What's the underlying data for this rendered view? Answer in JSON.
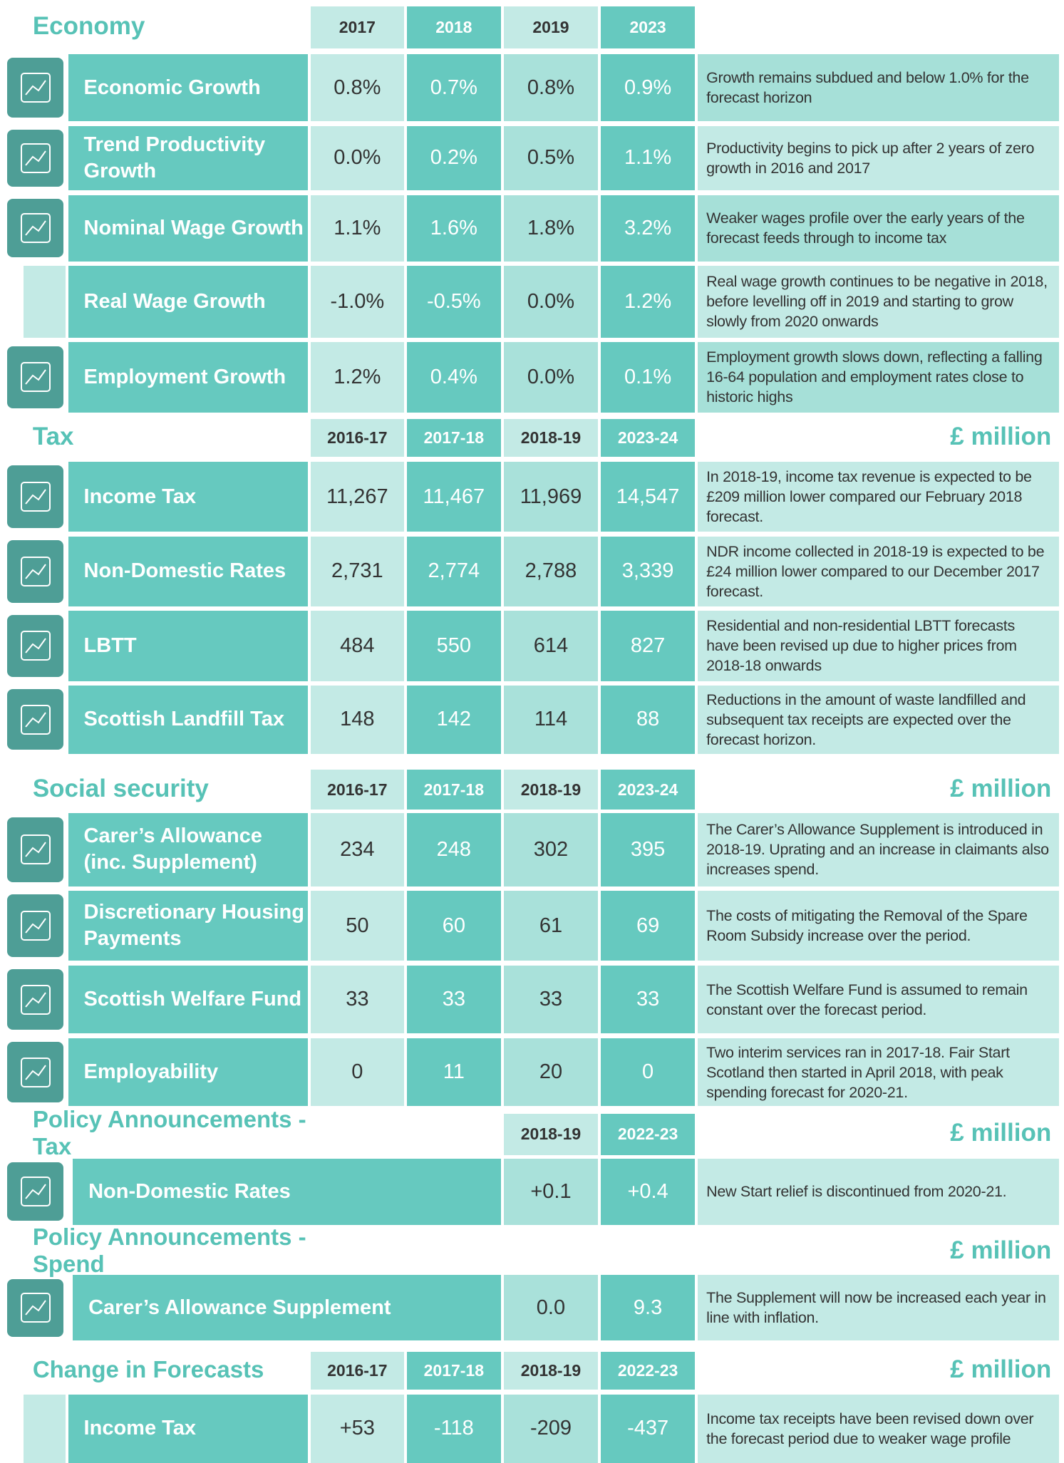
{
  "sections": [
    {
      "title": "Economy",
      "headers": [
        "2017",
        "2018",
        "2019",
        "2023"
      ],
      "rows": [
        {
          "label": "Economic Growth",
          "values": [
            "0.8%",
            "0.7%",
            "0.8%",
            "0.9%"
          ],
          "note": "Growth remains subdued and below 1.0% for the forecast horizon"
        },
        {
          "label": "Trend Productivity Growth",
          "values": [
            "0.0%",
            "0.2%",
            "0.5%",
            "1.1%"
          ],
          "note": "Productivity begins to pick up after 2 years of zero growth in 2016 and 2017"
        },
        {
          "label": "Nominal Wage Growth",
          "values": [
            "1.1%",
            "1.6%",
            "1.8%",
            "3.2%"
          ],
          "note": "Weaker wages profile over the early years of the forecast feeds through to income tax"
        },
        {
          "label": "Real Wage Growth",
          "values": [
            "-1.0%",
            "-0.5%",
            "0.0%",
            "1.2%"
          ],
          "note": "Real wage growth continues to be negative in 2018, before levelling off in 2019 and starting to grow slowly from 2020 onwards"
        },
        {
          "label": "Employment Growth",
          "values": [
            "1.2%",
            "0.4%",
            "0.0%",
            "0.1%"
          ],
          "note": "Employment growth slows down, reflecting a falling 16-64 population and employment rates close to historic highs"
        }
      ]
    },
    {
      "title": "Tax",
      "unit": "£ million",
      "headers": [
        "2016-17",
        "2017-18",
        "2018-19",
        "2023-24"
      ],
      "rows": [
        {
          "label": "Income Tax",
          "values": [
            "11,267",
            "11,467",
            "11,969",
            "14,547"
          ],
          "note": "In 2018-19, income tax revenue is expected to be £209 million lower compared our February 2018 forecast."
        },
        {
          "label": "Non-Domestic Rates",
          "values": [
            "2,731",
            "2,774",
            "2,788",
            "3,339"
          ],
          "note": "NDR income collected in 2018-19 is expected to be £24 million lower compared to our December 2017 forecast."
        },
        {
          "label": "LBTT",
          "values": [
            "484",
            "550",
            "614",
            "827"
          ],
          "note": "Residential and non-residential LBTT forecasts have been revised up due to higher prices from 2018-18 onwards"
        },
        {
          "label": "Scottish Landfill Tax",
          "values": [
            "148",
            "142",
            "114",
            "88"
          ],
          "note": "Reductions in the amount of waste landfilled and subsequent tax receipts are expected over the forecast horizon."
        }
      ]
    },
    {
      "title": "Social security",
      "unit": "£ million",
      "headers": [
        "2016-17",
        "2017-18",
        "2018-19",
        "2023-24"
      ],
      "rows": [
        {
          "label": "Carer’s Allowance (inc. Supplement)",
          "values": [
            "234",
            "248",
            "302",
            "395"
          ],
          "note": "The Carer’s Allowance Supplement is introduced in 2018-19. Uprating and an increase in claimants also increases spend."
        },
        {
          "label": "Discretionary Housing Payments",
          "values": [
            "50",
            "60",
            "61",
            "69"
          ],
          "note": "The costs of mitigating the Removal of the Spare Room Subsidy increase over the period."
        },
        {
          "label": "Scottish Welfare Fund",
          "values": [
            "33",
            "33",
            "33",
            "33"
          ],
          "note": "The Scottish Welfare Fund is assumed to remain constant over the forecast period."
        },
        {
          "label": "Employability",
          "values": [
            "0",
            "11",
            "20",
            "0"
          ],
          "note": "Two interim services ran in 2017-18. Fair Start Scotland then started in April 2018, with peak spending forecast for 2020-21."
        }
      ]
    },
    {
      "title": "Policy Announcements - Tax",
      "unit": "£ million",
      "headers": [
        "2018-19",
        "2022-23"
      ],
      "rows": [
        {
          "label": "Non-Domestic Rates",
          "values": [
            "+0.1",
            "+0.4"
          ],
          "note": "New Start relief is discontinued from 2020-21."
        }
      ]
    },
    {
      "title": "Policy Announcements - Spend",
      "unit": "£ million",
      "headers": [],
      "rows": [
        {
          "label": "Carer’s Allowance Supplement",
          "values": [
            "0.0",
            "9.3"
          ],
          "note": "The Supplement will now be increased each year in line with inflation."
        }
      ]
    },
    {
      "title": "Change in Forecasts",
      "unit": "£ million",
      "headers": [
        "2016-17",
        "2017-18",
        "2018-19",
        "2022-23"
      ],
      "rows": [
        {
          "label": "Income Tax",
          "values": [
            "+53",
            "-118",
            "-209",
            "-437"
          ],
          "note": "Income tax receipts have been revised down over the forecast period due to weaker wage profile"
        }
      ]
    }
  ]
}
